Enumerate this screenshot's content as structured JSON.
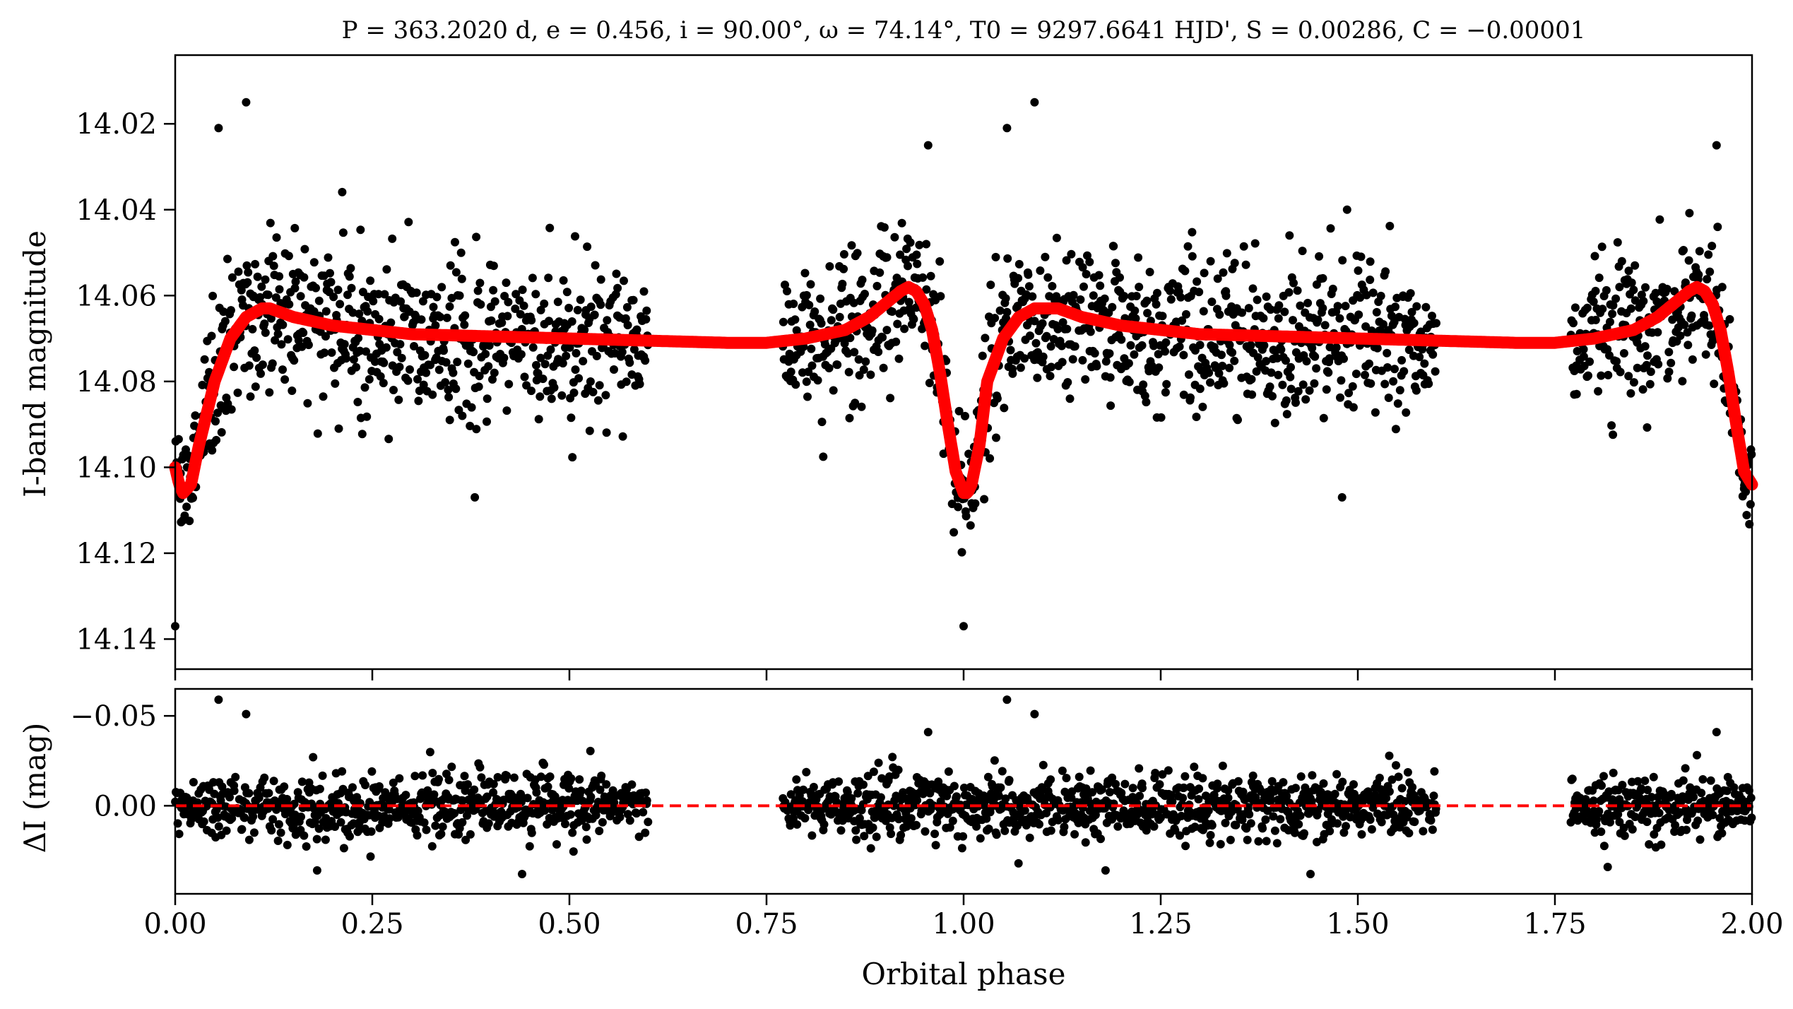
{
  "chart_data": [
    {
      "type": "scatter",
      "title": "P = 363.2020 d, e = 0.456, i = 90.00°, ω = 74.14°, T0 = 9297.6641 HJD', S = 0.00286, C = −0.00001",
      "ylabel": "I-band magnitude",
      "xlim": [
        0.0,
        2.0
      ],
      "ylim": [
        14.147,
        14.004
      ],
      "y_inverted": true,
      "yticks": [
        14.02,
        14.04,
        14.06,
        14.08,
        14.1,
        14.12,
        14.14
      ],
      "ytick_labels": [
        "14.02",
        "14.04",
        "14.06",
        "14.08",
        "14.10",
        "14.12",
        "14.14"
      ],
      "xticks": [
        0.0,
        0.25,
        0.5,
        0.75,
        1.0,
        1.25,
        1.5,
        1.75,
        2.0
      ],
      "series": [
        {
          "kind": "points",
          "color": "#000000",
          "phase_coverage": [
            [
              0.0,
              0.6
            ],
            [
              0.77,
              1.6
            ],
            [
              1.77,
              2.0
            ]
          ],
          "scatter_sigma": 0.009,
          "outliers": [
            [
              0.055,
              14.021
            ],
            [
              0.09,
              14.015
            ],
            [
              0.955,
              14.025
            ],
            [
              1.055,
              14.021
            ],
            [
              1.09,
              14.015
            ],
            [
              1.955,
              14.025
            ],
            [
              0.0,
              14.137
            ],
            [
              1.0,
              14.137
            ],
            [
              0.38,
              14.107
            ],
            [
              1.48,
              14.107
            ]
          ]
        },
        {
          "kind": "line",
          "color": "#ff0000",
          "x": [
            0.0,
            0.005,
            0.01,
            0.02,
            0.03,
            0.05,
            0.07,
            0.09,
            0.11,
            0.12,
            0.15,
            0.2,
            0.25,
            0.3,
            0.4,
            0.5,
            0.6,
            0.7,
            0.75,
            0.8,
            0.85,
            0.88,
            0.9,
            0.92,
            0.93,
            0.94,
            0.95,
            0.96,
            0.97,
            0.98,
            0.99,
            1.0,
            1.005,
            1.01,
            1.02,
            1.03,
            1.05,
            1.07,
            1.09,
            1.11,
            1.12,
            1.15,
            1.2,
            1.25,
            1.3,
            1.4,
            1.5,
            1.6,
            1.7,
            1.75,
            1.8,
            1.85,
            1.88,
            1.9,
            1.92,
            1.93,
            1.94,
            1.95,
            1.96,
            1.97,
            1.98,
            1.99,
            2.0
          ],
          "y": [
            14.1,
            14.104,
            14.106,
            14.104,
            14.095,
            14.08,
            14.07,
            14.065,
            14.063,
            14.063,
            14.065,
            14.067,
            14.068,
            14.069,
            14.0695,
            14.07,
            14.0705,
            14.071,
            14.071,
            14.07,
            14.068,
            14.065,
            14.062,
            14.059,
            14.058,
            14.059,
            14.062,
            14.068,
            14.078,
            14.09,
            14.101,
            14.106,
            14.106,
            14.104,
            14.095,
            14.08,
            14.07,
            14.065,
            14.063,
            14.063,
            14.063,
            14.065,
            14.067,
            14.068,
            14.069,
            14.0695,
            14.07,
            14.0705,
            14.071,
            14.071,
            14.07,
            14.068,
            14.065,
            14.062,
            14.059,
            14.058,
            14.059,
            14.062,
            14.068,
            14.078,
            14.09,
            14.101,
            14.104
          ]
        }
      ]
    },
    {
      "type": "scatter",
      "title": "",
      "xlabel": "Orbital phase",
      "ylabel": "ΔI (mag)",
      "xlim": [
        0.0,
        2.0
      ],
      "ylim": [
        0.049,
        -0.065
      ],
      "y_inverted": true,
      "yticks": [
        -0.05,
        0.0
      ],
      "ytick_labels": [
        "−0.05",
        "0.00"
      ],
      "xticks": [
        0.0,
        0.25,
        0.5,
        0.75,
        1.0,
        1.25,
        1.5,
        1.75,
        2.0
      ],
      "xtick_labels": [
        "0.00",
        "0.25",
        "0.50",
        "0.75",
        "1.00",
        "1.25",
        "1.50",
        "1.75",
        "2.00"
      ],
      "series": [
        {
          "kind": "points",
          "color": "#000000",
          "phase_coverage": [
            [
              0.0,
              0.6
            ],
            [
              0.77,
              1.6
            ],
            [
              1.77,
              2.0
            ]
          ],
          "scatter_sigma": 0.009,
          "outliers": [
            [
              0.055,
              -0.059
            ],
            [
              0.09,
              -0.051
            ],
            [
              0.955,
              -0.041
            ],
            [
              1.055,
              -0.059
            ],
            [
              1.09,
              -0.051
            ],
            [
              1.955,
              -0.041
            ],
            [
              0.18,
              0.036
            ],
            [
              0.44,
              0.038
            ],
            [
              1.18,
              0.036
            ],
            [
              1.44,
              0.038
            ]
          ]
        },
        {
          "kind": "reference-line",
          "color": "#ff0000",
          "style": "dashed",
          "y": 0.0
        }
      ]
    }
  ]
}
